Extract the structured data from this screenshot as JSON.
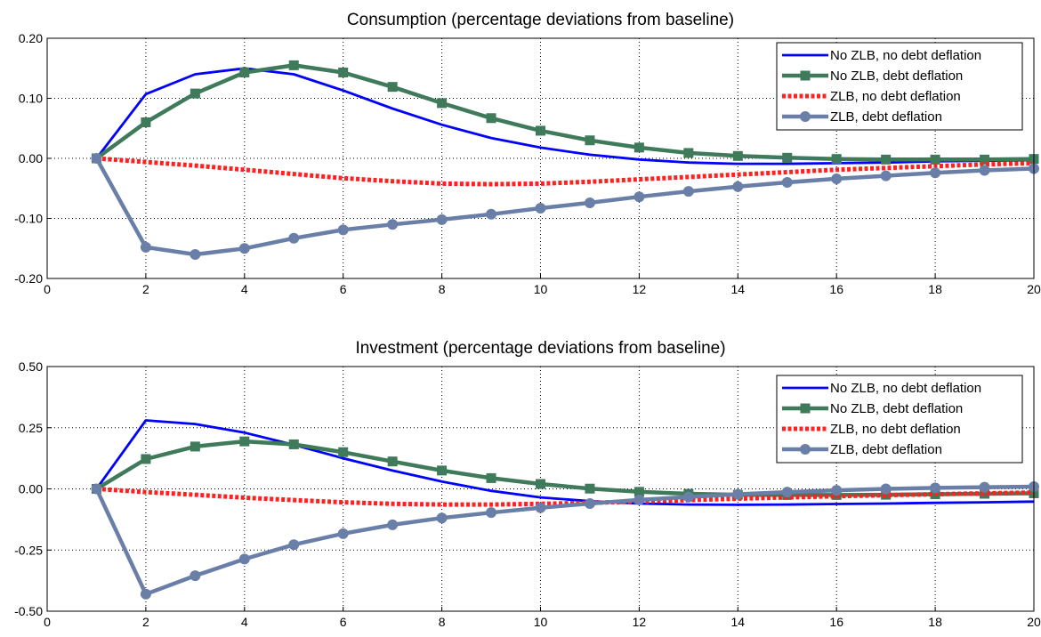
{
  "chart_data": [
    {
      "type": "line",
      "title": "Consumption (percentage deviations from baseline)",
      "xlabel": "",
      "ylabel": "",
      "xlim": [
        0,
        20
      ],
      "ylim": [
        -0.2,
        0.2
      ],
      "xticks": [
        0,
        2,
        4,
        6,
        8,
        10,
        12,
        14,
        16,
        18,
        20
      ],
      "xtick_labels": [
        "0",
        "2",
        "4",
        "6",
        "8",
        "10",
        "12",
        "14",
        "16",
        "18",
        "20"
      ],
      "yticks": [
        -0.2,
        -0.1,
        0.0,
        0.1,
        0.2
      ],
      "ytick_labels": [
        "-0.20",
        "-0.10",
        "0.00",
        "0.10",
        "0.20"
      ],
      "grid": true,
      "legend_position": "top-right",
      "x": [
        1,
        2,
        3,
        4,
        5,
        6,
        7,
        8,
        9,
        10,
        11,
        12,
        13,
        14,
        15,
        16,
        17,
        18,
        19,
        20
      ],
      "series": [
        {
          "name": "No ZLB, no debt deflation",
          "color": "#0000ff",
          "style": "solid",
          "marker": "none",
          "values": [
            0.0,
            0.107,
            0.14,
            0.15,
            0.14,
            0.113,
            0.083,
            0.056,
            0.034,
            0.018,
            0.006,
            -0.002,
            -0.007,
            -0.009,
            -0.009,
            -0.008,
            -0.007,
            -0.005,
            -0.004,
            -0.003
          ]
        },
        {
          "name": "No ZLB, debt deflation",
          "color": "#3f7a5a",
          "style": "solid",
          "marker": "square",
          "values": [
            0.0,
            0.06,
            0.108,
            0.143,
            0.155,
            0.143,
            0.119,
            0.092,
            0.067,
            0.046,
            0.03,
            0.018,
            0.009,
            0.004,
            0.001,
            -0.001,
            -0.002,
            -0.002,
            -0.002,
            -0.001
          ]
        },
        {
          "name": "ZLB, no debt deflation",
          "color": "#ff2020",
          "style": "dotted",
          "marker": "none",
          "values": [
            0.0,
            -0.006,
            -0.012,
            -0.019,
            -0.026,
            -0.033,
            -0.038,
            -0.042,
            -0.043,
            -0.042,
            -0.039,
            -0.035,
            -0.031,
            -0.027,
            -0.023,
            -0.019,
            -0.016,
            -0.013,
            -0.01,
            -0.008
          ]
        },
        {
          "name": "ZLB, debt deflation",
          "color": "#6a7fa8",
          "style": "solid",
          "marker": "circle",
          "values": [
            0.0,
            -0.148,
            -0.16,
            -0.15,
            -0.133,
            -0.119,
            -0.11,
            -0.102,
            -0.093,
            -0.083,
            -0.074,
            -0.064,
            -0.055,
            -0.047,
            -0.04,
            -0.034,
            -0.029,
            -0.024,
            -0.02,
            -0.017
          ]
        }
      ]
    },
    {
      "type": "line",
      "title": "Investment (percentage deviations from baseline)",
      "xlabel": "",
      "ylabel": "",
      "xlim": [
        0,
        20
      ],
      "ylim": [
        -0.5,
        0.5
      ],
      "xticks": [
        0,
        2,
        4,
        6,
        8,
        10,
        12,
        14,
        16,
        18,
        20
      ],
      "xtick_labels": [
        "0",
        "2",
        "4",
        "6",
        "8",
        "10",
        "12",
        "14",
        "16",
        "18",
        "20"
      ],
      "yticks": [
        -0.5,
        -0.25,
        0.0,
        0.25,
        0.5
      ],
      "ytick_labels": [
        "-0.50",
        "-0.25",
        "0.00",
        "0.25",
        "0.50"
      ],
      "grid": true,
      "legend_position": "top-right",
      "x": [
        1,
        2,
        3,
        4,
        5,
        6,
        7,
        8,
        9,
        10,
        11,
        12,
        13,
        14,
        15,
        16,
        17,
        18,
        19,
        20
      ],
      "series": [
        {
          "name": "No ZLB, no debt deflation",
          "color": "#0000ff",
          "style": "solid",
          "marker": "none",
          "values": [
            0.0,
            0.28,
            0.265,
            0.23,
            0.18,
            0.125,
            0.075,
            0.03,
            -0.008,
            -0.035,
            -0.05,
            -0.06,
            -0.064,
            -0.065,
            -0.064,
            -0.062,
            -0.06,
            -0.057,
            -0.055,
            -0.052
          ]
        },
        {
          "name": "No ZLB, debt deflation",
          "color": "#3f7a5a",
          "style": "solid",
          "marker": "square",
          "values": [
            0.0,
            0.122,
            0.173,
            0.194,
            0.182,
            0.15,
            0.112,
            0.075,
            0.044,
            0.02,
            0.001,
            -0.012,
            -0.02,
            -0.024,
            -0.025,
            -0.025,
            -0.024,
            -0.022,
            -0.02,
            -0.018
          ]
        },
        {
          "name": "ZLB, no debt deflation",
          "color": "#ff2020",
          "style": "dotted",
          "marker": "none",
          "values": [
            0.0,
            -0.013,
            -0.024,
            -0.036,
            -0.046,
            -0.055,
            -0.061,
            -0.064,
            -0.064,
            -0.061,
            -0.057,
            -0.052,
            -0.046,
            -0.04,
            -0.035,
            -0.03,
            -0.026,
            -0.022,
            -0.018,
            -0.015
          ]
        },
        {
          "name": "ZLB, debt deflation",
          "color": "#6a7fa8",
          "style": "solid",
          "marker": "circle",
          "values": [
            0.0,
            -0.43,
            -0.355,
            -0.287,
            -0.228,
            -0.183,
            -0.147,
            -0.119,
            -0.097,
            -0.077,
            -0.06,
            -0.045,
            -0.033,
            -0.022,
            -0.013,
            -0.006,
            0.0,
            0.004,
            0.007,
            0.009
          ]
        }
      ]
    }
  ]
}
